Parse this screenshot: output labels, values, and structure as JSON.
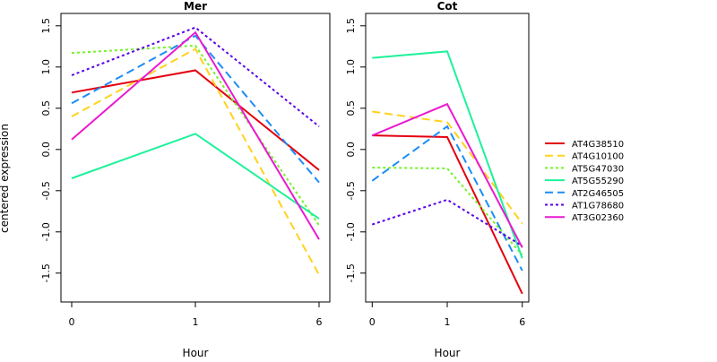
{
  "shared": {
    "ylabel": "centered expression",
    "xlabel": "Hour",
    "x_ticks": [
      "0",
      "1",
      "6"
    ],
    "y_ticks": [
      "-1.5",
      "-1.0",
      "-0.5",
      "0.0",
      "0.5",
      "1.0",
      "1.5"
    ],
    "ylim": [
      -1.85,
      1.65
    ]
  },
  "chart_data": [
    {
      "type": "line",
      "title": "Mer",
      "xlabel": "Hour",
      "ylabel": "centered expression",
      "categories": [
        "0",
        "1",
        "6"
      ],
      "ylim": [
        -1.85,
        1.65
      ],
      "series": [
        {
          "name": "AT4G38510",
          "values": [
            0.69,
            0.96,
            -0.25
          ]
        },
        {
          "name": "AT4G10100",
          "values": [
            0.4,
            1.22,
            -1.52
          ]
        },
        {
          "name": "AT5G47030",
          "values": [
            1.17,
            1.26,
            -0.92
          ]
        },
        {
          "name": "AT5G55290",
          "values": [
            -0.35,
            0.19,
            -0.84
          ]
        },
        {
          "name": "AT2G46505",
          "values": [
            0.56,
            1.38,
            -0.4
          ]
        },
        {
          "name": "AT1G78680",
          "values": [
            0.9,
            1.48,
            0.28
          ]
        },
        {
          "name": "AT3G02360",
          "values": [
            0.12,
            1.42,
            -1.09
          ]
        }
      ]
    },
    {
      "type": "line",
      "title": "Cot",
      "xlabel": "Hour",
      "categories": [
        "0",
        "1",
        "6"
      ],
      "ylim": [
        -1.85,
        1.65
      ],
      "series": [
        {
          "name": "AT4G38510",
          "values": [
            0.17,
            0.15,
            -1.75
          ]
        },
        {
          "name": "AT4G10100",
          "values": [
            0.46,
            0.33,
            -0.9
          ]
        },
        {
          "name": "AT5G47030",
          "values": [
            -0.22,
            -0.23,
            -1.28
          ]
        },
        {
          "name": "AT5G55290",
          "values": [
            1.11,
            1.19,
            -1.32
          ]
        },
        {
          "name": "AT2G46505",
          "values": [
            -0.38,
            0.28,
            -1.47
          ]
        },
        {
          "name": "AT1G78680",
          "values": [
            -0.91,
            -0.61,
            -1.17
          ]
        },
        {
          "name": "AT3G02360",
          "values": [
            0.17,
            0.55,
            -1.19
          ]
        }
      ]
    }
  ],
  "legend": {
    "placement": "right",
    "items": [
      {
        "label": "AT4G38510",
        "color": "#e4000f",
        "dash": "solid"
      },
      {
        "label": "AT4G10100",
        "color": "#ffd21d",
        "dash": "dashed"
      },
      {
        "label": "AT5G47030",
        "color": "#74f32a",
        "dash": "dotted"
      },
      {
        "label": "AT5G55290",
        "color": "#1ef19a",
        "dash": "solid"
      },
      {
        "label": "AT2G46505",
        "color": "#1c8df5",
        "dash": "dashed"
      },
      {
        "label": "AT1G78680",
        "color": "#5a00ea",
        "dash": "dotted"
      },
      {
        "label": "AT3G02360",
        "color": "#ea19d0",
        "dash": "solid"
      }
    ]
  }
}
